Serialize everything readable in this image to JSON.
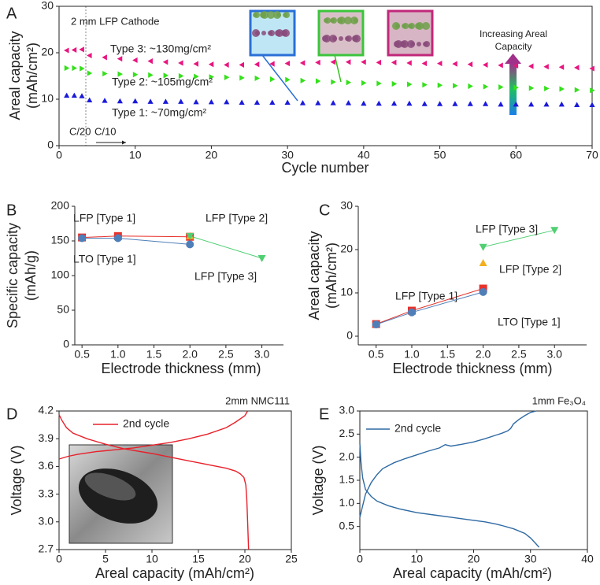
{
  "chart_data": [
    {
      "type": "scatter",
      "panel": "A",
      "xlabel": "Cycle number",
      "ylabel": [
        "Areal capacity",
        "(mAh/cm²)"
      ],
      "x": [
        1,
        2,
        3,
        4,
        6,
        8,
        10,
        12,
        14,
        16,
        18,
        20,
        22,
        24,
        26,
        28,
        30,
        32,
        34,
        36,
        38,
        40,
        42,
        44,
        46,
        48,
        50,
        52,
        54,
        56,
        58,
        60,
        62,
        64,
        66,
        68,
        70
      ],
      "xlim": [
        0,
        70
      ],
      "xticks": [
        0,
        10,
        20,
        30,
        40,
        50,
        60,
        70
      ],
      "ylim": [
        0,
        30
      ],
      "yticks": [
        0,
        10,
        20,
        30
      ],
      "series": [
        {
          "name": "Type 3: ~130mg/cm²",
          "color": "#e8157f",
          "marker": "triangle-left",
          "values": [
            20.5,
            20.6,
            20.7,
            19.4,
            19.0,
            18.7,
            18.4,
            18.2,
            18.0,
            17.8,
            17.6,
            17.5,
            17.4,
            17.4,
            17.5,
            17.6,
            17.7,
            17.8,
            17.9,
            18.0,
            18.0,
            18.0,
            17.9,
            17.9,
            17.8,
            17.7,
            17.7,
            17.6,
            17.5,
            17.4,
            17.3,
            17.2,
            17.1,
            17.0,
            16.9,
            16.8,
            16.6
          ]
        },
        {
          "name": "Type 2: ~105mg/cm²",
          "color": "#33e01a",
          "marker": "triangle-right",
          "values": [
            16.7,
            16.7,
            16.6,
            15.6,
            15.5,
            15.4,
            15.3,
            15.2,
            15.1,
            15.0,
            14.9,
            14.8,
            14.7,
            14.6,
            14.5,
            14.3,
            14.2,
            14.0,
            13.9,
            13.7,
            13.6,
            13.5,
            13.4,
            13.3,
            13.2,
            13.1,
            13.0,
            12.9,
            12.8,
            12.7,
            12.6,
            12.5,
            12.4,
            12.3,
            12.2,
            12.0,
            11.9
          ]
        },
        {
          "name": "Type 1: ~70mg/cm²",
          "color": "#1a1adb",
          "marker": "triangle-up",
          "values": [
            10.8,
            10.8,
            10.7,
            9.8,
            9.7,
            9.6,
            9.6,
            9.5,
            9.5,
            9.5,
            9.4,
            9.4,
            9.4,
            9.3,
            9.3,
            9.3,
            9.3,
            9.2,
            9.2,
            9.2,
            9.2,
            9.1,
            9.1,
            9.1,
            9.1,
            9.0,
            9.0,
            9.0,
            9.0,
            9.0,
            8.9,
            8.9,
            8.9,
            8.9,
            8.9,
            8.8,
            8.8
          ]
        }
      ],
      "annotations": [
        "2 mm LFP Cathode",
        "C/20",
        "C/10",
        [
          "Increasing Areal",
          "Capacity"
        ]
      ]
    },
    {
      "type": "line",
      "panel": "B",
      "xlabel": "Electrode thickness (mm)",
      "ylabel": [
        "Specific capacity",
        "(mAh/g)"
      ],
      "xlim": [
        0.4,
        3.3
      ],
      "xticks": [
        0.5,
        {
          "value": 1,
          "label": "1.0"
        },
        1.5,
        {
          "value": 2,
          "label": "2.0"
        },
        2.5,
        {
          "value": 3,
          "label": "3.0"
        }
      ],
      "ylim": [
        0,
        200
      ],
      "yticks": [
        0,
        50,
        100,
        150,
        200
      ],
      "series": [
        {
          "name": "LFP [Type 1]",
          "color": "#e8312a",
          "marker": "square",
          "x": [
            0.5,
            1,
            2
          ],
          "values": [
            155,
            157,
            156
          ]
        },
        {
          "name": "LTO [Type 1]",
          "color": "#4f7fb8",
          "marker": "circle",
          "x": [
            0.5,
            1,
            2
          ],
          "values": [
            154,
            154,
            145
          ]
        },
        {
          "name": "LFP [Type 2]",
          "color": "#f2b01e",
          "marker": "triangle-up",
          "x": [
            2
          ],
          "values": [
            157
          ]
        },
        {
          "name": "LFP [Type 3]",
          "color": "#4fcf72",
          "marker": "triangle-down",
          "x": [
            2,
            3
          ],
          "values": [
            157,
            125
          ]
        }
      ]
    },
    {
      "type": "line",
      "panel": "C",
      "xlabel": "Electrode thickness (mm)",
      "ylabel": [
        "Areal capacity",
        "(mAh/cm²)"
      ],
      "xlim": [
        0.25,
        3.45
      ],
      "xticks": [
        0.5,
        {
          "value": 1,
          "label": "1.0"
        },
        1.5,
        {
          "value": 2,
          "label": "2.0"
        },
        2.5,
        {
          "value": 3,
          "label": "3.0"
        }
      ],
      "ylim": [
        -2,
        30
      ],
      "yticks": [
        0,
        10,
        20,
        30
      ],
      "series": [
        {
          "name": "LFP [Type 1]",
          "color": "#e8312a",
          "marker": "square",
          "x": [
            0.5,
            1,
            2
          ],
          "values": [
            2.8,
            5.9,
            11.0
          ]
        },
        {
          "name": "LTO [Type 1]",
          "color": "#4f7fb8",
          "marker": "circle",
          "x": [
            0.5,
            1,
            2
          ],
          "values": [
            2.7,
            5.5,
            10.2
          ]
        },
        {
          "name": "LFP [Type 2]",
          "color": "#f2b01e",
          "marker": "triangle-up",
          "x": [
            2
          ],
          "values": [
            16.9
          ]
        },
        {
          "name": "LFP [Type 3]",
          "color": "#4fcf72",
          "marker": "triangle-down",
          "x": [
            2,
            3
          ],
          "values": [
            20.6,
            24.5
          ]
        }
      ]
    },
    {
      "type": "line",
      "panel": "D",
      "title": "2mm NMC111",
      "xlabel": "Areal capacity (mAh/cm²)",
      "ylabel": [
        "Voltage (V)"
      ],
      "xlim": [
        0,
        25
      ],
      "xticks": [
        0,
        5,
        10,
        15,
        20,
        25
      ],
      "ylim": [
        2.7,
        4.2
      ],
      "yticks": [
        2.7,
        {
          "value": 3,
          "label": "3.0"
        },
        3.3,
        3.6,
        3.9,
        4.2
      ],
      "series": [
        {
          "name": "2nd cycle",
          "color": "#e8202a",
          "x": [
            0,
            1,
            2,
            4,
            6,
            8,
            10,
            12,
            14,
            16,
            18,
            19,
            20,
            20.3,
            null,
            0,
            0.3,
            0.8,
            1.5,
            3,
            5,
            7,
            10,
            12,
            14,
            16,
            18,
            19,
            19.5,
            19.9,
            20.1,
            20.2,
            20.3,
            20.4
          ],
          "values": [
            3.68,
            3.71,
            3.73,
            3.76,
            3.78,
            3.8,
            3.83,
            3.86,
            3.9,
            3.95,
            4.02,
            4.08,
            4.15,
            4.2,
            null,
            4.16,
            4.1,
            4.02,
            3.96,
            3.9,
            3.84,
            3.79,
            3.74,
            3.7,
            3.66,
            3.62,
            3.58,
            3.55,
            3.52,
            3.48,
            3.4,
            3.25,
            3.0,
            2.7
          ]
        }
      ]
    },
    {
      "type": "line",
      "panel": "E",
      "title": "1mm Fe₃O₄",
      "xlabel": "Areal capacity (mAh/cm²)",
      "ylabel": [
        "Voltage (V)"
      ],
      "xlim": [
        0,
        40
      ],
      "xticks": [
        0,
        10,
        20,
        30,
        40
      ],
      "ylim": [
        0,
        3
      ],
      "yticks": [
        0.5,
        {
          "value": 1,
          "label": "1.0"
        },
        1.5,
        {
          "value": 2,
          "label": "2.0"
        },
        2.5,
        {
          "value": 3,
          "label": "3.0"
        }
      ],
      "series": [
        {
          "name": "2nd cycle",
          "color": "#2f6aa3",
          "x": [
            0,
            0.3,
            1,
            2,
            3,
            4,
            6,
            8,
            10,
            12,
            14,
            15,
            16,
            18,
            20,
            22,
            24,
            25,
            26,
            26.5,
            27,
            28,
            29,
            30,
            31,
            null,
            0,
            0.2,
            0.5,
            1,
            2,
            3,
            5,
            7,
            10,
            13,
            16,
            19,
            22,
            24,
            25,
            27,
            29,
            30,
            31,
            31.5
          ],
          "values": [
            0.7,
            0.85,
            1.2,
            1.45,
            1.62,
            1.75,
            1.88,
            1.97,
            2.05,
            2.13,
            2.2,
            2.27,
            2.24,
            2.28,
            2.33,
            2.4,
            2.48,
            2.52,
            2.57,
            2.62,
            2.72,
            2.82,
            2.9,
            2.97,
            3.0,
            null,
            2.3,
            1.9,
            1.55,
            1.3,
            1.15,
            1.05,
            0.95,
            0.88,
            0.8,
            0.75,
            0.7,
            0.65,
            0.6,
            0.55,
            0.52,
            0.45,
            0.35,
            0.25,
            0.12,
            0.05
          ]
        }
      ]
    }
  ]
}
